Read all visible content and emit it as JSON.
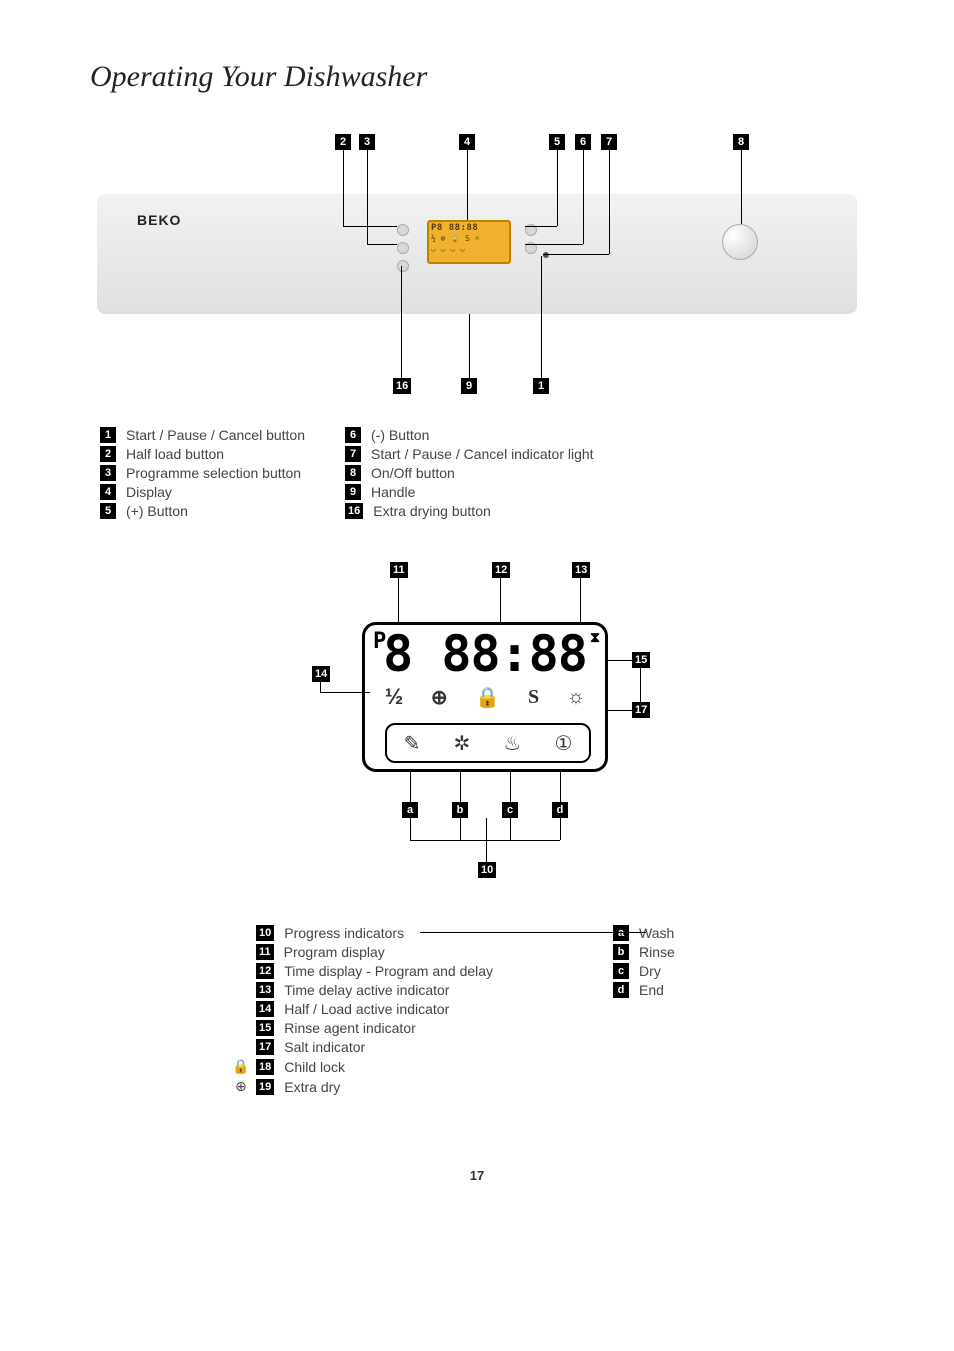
{
  "page": {
    "title": "Operating Your Dishwasher",
    "number": "17"
  },
  "panel": {
    "brand": "BEKO",
    "display_top": "P8 88:88",
    "display_mid": "½ ⊕ 🔒 S ☼",
    "display_bot": "◡ ◡ ◡ ◡"
  },
  "panel_legend_left": [
    {
      "n": "1",
      "label": "Start / Pause / Cancel button"
    },
    {
      "n": "2",
      "label": "Half load button"
    },
    {
      "n": "3",
      "label": "Programme selection button"
    },
    {
      "n": "4",
      "label": "Display"
    },
    {
      "n": "5",
      "label": "(+) Button"
    }
  ],
  "panel_legend_right": [
    {
      "n": "6",
      "label": "(-) Button"
    },
    {
      "n": "7",
      "label": "Start / Pause / Cancel indicator light"
    },
    {
      "n": "8",
      "label": "On/Off button"
    },
    {
      "n": "9",
      "label": "Handle"
    },
    {
      "n": "16",
      "label": "Extra drying button"
    }
  ],
  "lcd": {
    "p": "P",
    "digits": "8 88:88",
    "hourglass": "⧗",
    "row2_half": "½",
    "row2_plus": "⊕",
    "row2_lock": "🔒",
    "row2_s": "S",
    "row2_sun": "☼",
    "prog_a": "✎",
    "prog_b": "✲",
    "prog_c": "♨",
    "prog_d": "①"
  },
  "display_legend_left": [
    {
      "n": "10",
      "label": "Progress indicators",
      "icon": ""
    },
    {
      "n": "11",
      "label": "Program display",
      "icon": ""
    },
    {
      "n": "12",
      "label": "Time display - Program and delay",
      "icon": ""
    },
    {
      "n": "13",
      "label": "Time delay active indicator",
      "icon": ""
    },
    {
      "n": "14",
      "label": "Half / Load active indicator",
      "icon": ""
    },
    {
      "n": "15",
      "label": "Rinse agent indicator",
      "icon": ""
    },
    {
      "n": "17",
      "label": "Salt indicator",
      "icon": ""
    },
    {
      "n": "18",
      "label": "Child lock",
      "icon": "🔒"
    },
    {
      "n": "19",
      "label": "Extra dry",
      "icon": "⊕"
    }
  ],
  "display_legend_right": [
    {
      "n": "a",
      "label": "Wash"
    },
    {
      "n": "b",
      "label": "Rinse"
    },
    {
      "n": "c",
      "label": "Dry"
    },
    {
      "n": "d",
      "label": "End"
    }
  ],
  "callouts": {
    "top": [
      "2",
      "3",
      "4",
      "5",
      "6",
      "7",
      "8"
    ],
    "bottom": [
      "16",
      "9",
      "1"
    ],
    "lcd_top": [
      "11",
      "12",
      "13"
    ],
    "lcd_side": [
      "14",
      "15",
      "17"
    ],
    "lcd_prog": [
      "a",
      "b",
      "c",
      "d",
      "10"
    ]
  },
  "colors": {
    "marker_bg": "#000000",
    "marker_text": "#ffffff",
    "body_text": "#444444",
    "display_bg": "#f0b030",
    "display_border": "#c08000",
    "panel_top": "#f2f2f2",
    "panel_bot": "#e0e0e0"
  }
}
